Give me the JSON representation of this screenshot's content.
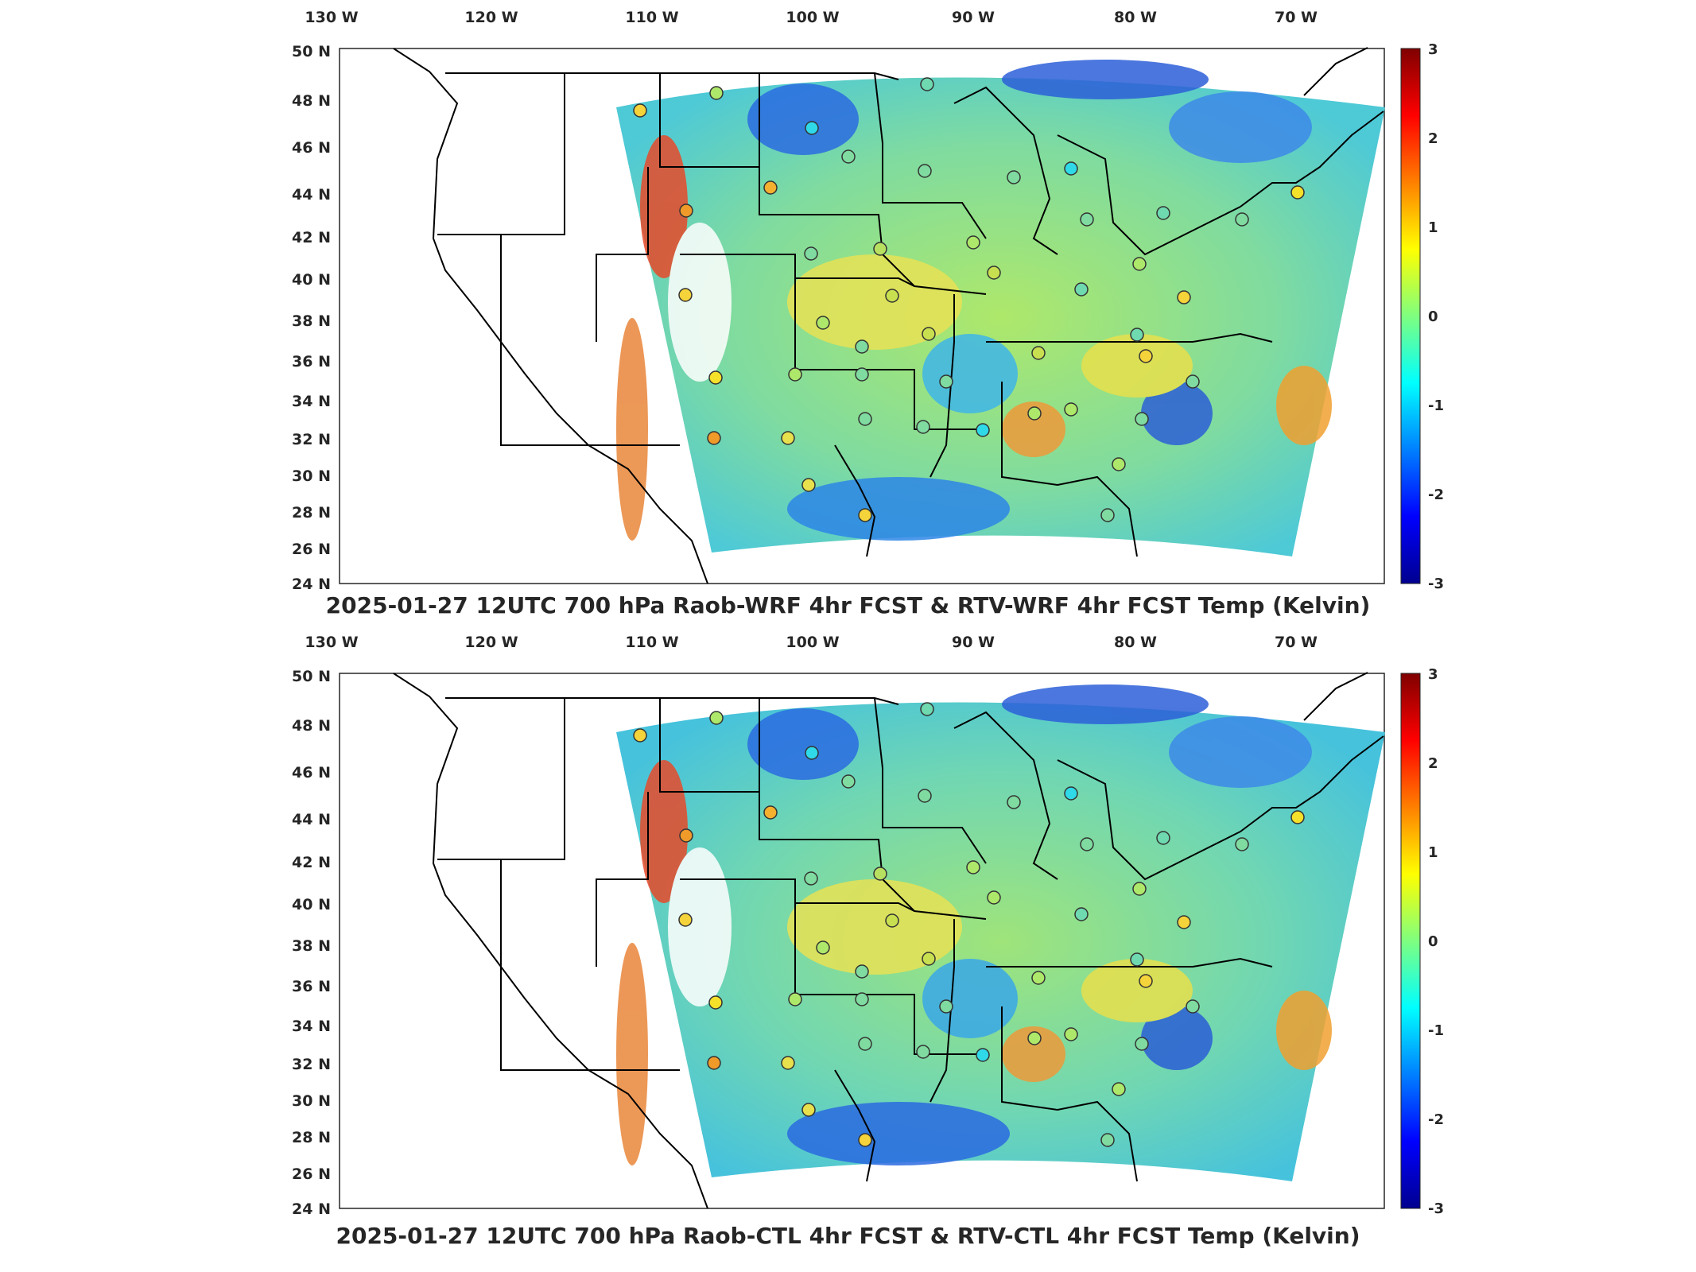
{
  "panels": [
    {
      "id": "top",
      "title": "2025-01-27 12UTC 700 hPa Raob-WRF 4hr FCST & RTV-WRF 4hr FCST Temp (Kelvin)",
      "lon_ticks": [
        "130 W",
        "120 W",
        "110 W",
        "100 W",
        "90 W",
        "80 W",
        "70 W"
      ],
      "lat_ticks": [
        "50 N",
        "48 N",
        "46 N",
        "44 N",
        "42 N",
        "40 N",
        "38 N",
        "36 N",
        "34 N",
        "32 N",
        "30 N",
        "28 N",
        "26 N",
        "24 N"
      ],
      "colorbar_ticks": [
        "3",
        "2",
        "1",
        "0",
        "-1",
        "-2",
        "-3"
      ]
    },
    {
      "id": "bottom",
      "title": "2025-01-27 12UTC 700 hPa Raob-CTL 4hr FCST & RTV-CTL 4hr FCST Temp (Kelvin)",
      "lon_ticks": [
        "130 W",
        "120 W",
        "110 W",
        "100 W",
        "90 W",
        "80 W",
        "70 W"
      ],
      "lat_ticks": [
        "50 N",
        "48 N",
        "46 N",
        "44 N",
        "42 N",
        "40 N",
        "38 N",
        "36 N",
        "34 N",
        "32 N",
        "30 N",
        "28 N",
        "26 N",
        "24 N"
      ],
      "colorbar_ticks": [
        "3",
        "2",
        "1",
        "0",
        "-1",
        "-2",
        "-3"
      ]
    }
  ],
  "colormap": "jet",
  "colorbar_range": [
    -3,
    3
  ],
  "colors": {
    "axes": "#262626",
    "background": "#ffffff",
    "field_base": "#5fd3c0",
    "state_lines": "#000000"
  }
}
